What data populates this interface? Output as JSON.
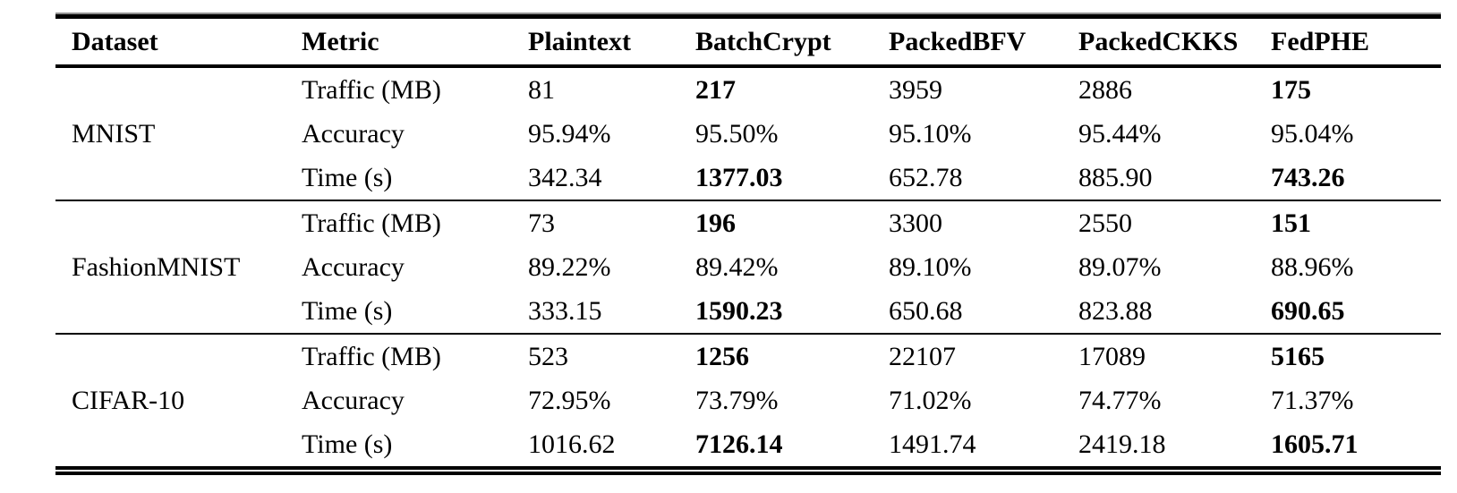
{
  "table": {
    "text_color": "#000000",
    "background": "#ffffff",
    "rule_color": "#000000",
    "columns": [
      "Dataset",
      "Metric",
      "Plaintext",
      "BatchCrypt",
      "PackedBFV",
      "PackedCKKS",
      "FedPHE"
    ],
    "groups": [
      {
        "dataset": "MNIST",
        "rows": [
          {
            "metric": "Traffic (MB)",
            "values": [
              "81",
              "217",
              "3959",
              "2886",
              "175"
            ],
            "bold": [
              false,
              true,
              false,
              false,
              true
            ]
          },
          {
            "metric": "Accuracy",
            "values": [
              "95.94%",
              "95.50%",
              "95.10%",
              "95.44%",
              "95.04%"
            ],
            "bold": [
              false,
              false,
              false,
              false,
              false
            ]
          },
          {
            "metric": "Time (s)",
            "values": [
              "342.34",
              "1377.03",
              "652.78",
              "885.90",
              "743.26"
            ],
            "bold": [
              false,
              true,
              false,
              false,
              true
            ]
          }
        ]
      },
      {
        "dataset": "FashionMNIST",
        "rows": [
          {
            "metric": "Traffic (MB)",
            "values": [
              "73",
              "196",
              "3300",
              "2550",
              "151"
            ],
            "bold": [
              false,
              true,
              false,
              false,
              true
            ]
          },
          {
            "metric": "Accuracy",
            "values": [
              "89.22%",
              "89.42%",
              "89.10%",
              "89.07%",
              "88.96%"
            ],
            "bold": [
              false,
              false,
              false,
              false,
              false
            ]
          },
          {
            "metric": "Time (s)",
            "values": [
              "333.15",
              "1590.23",
              "650.68",
              "823.88",
              "690.65"
            ],
            "bold": [
              false,
              true,
              false,
              false,
              true
            ]
          }
        ]
      },
      {
        "dataset": "CIFAR-10",
        "rows": [
          {
            "metric": "Traffic (MB)",
            "values": [
              "523",
              "1256",
              "22107",
              "17089",
              "5165"
            ],
            "bold": [
              false,
              true,
              false,
              false,
              true
            ]
          },
          {
            "metric": "Accuracy",
            "values": [
              "72.95%",
              "73.79%",
              "71.02%",
              "74.77%",
              "71.37%"
            ],
            "bold": [
              false,
              false,
              false,
              false,
              false
            ]
          },
          {
            "metric": "Time (s)",
            "values": [
              "1016.62",
              "7126.14",
              "1491.74",
              "2419.18",
              "1605.71"
            ],
            "bold": [
              false,
              true,
              false,
              false,
              true
            ]
          }
        ]
      }
    ]
  }
}
